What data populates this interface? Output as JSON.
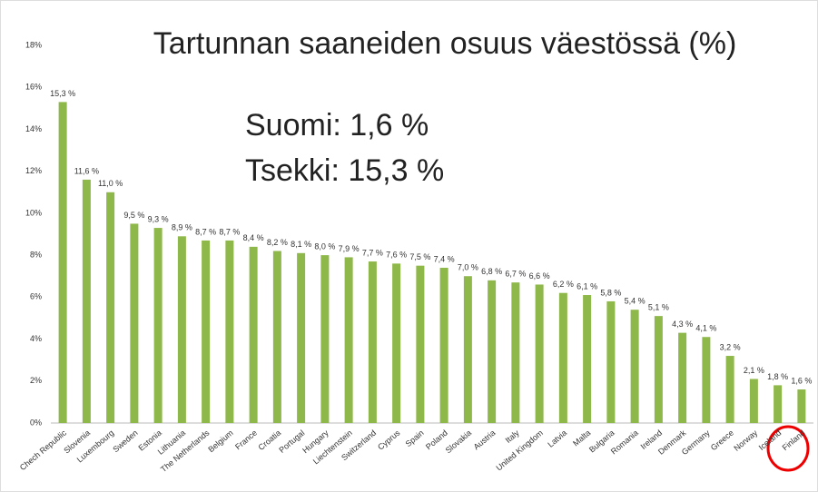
{
  "chart_data": {
    "type": "bar",
    "title": "Tartunnan saaneiden osuus väestössä (%)",
    "annotations": [
      "Suomi: 1,6 %",
      "Tsekki: 15,3 %"
    ],
    "categories": [
      "Chech Republic",
      "Slovenia",
      "Luxembourg",
      "Sweden",
      "Estonia",
      "Lithuania",
      "The Netherlands",
      "Belgium",
      "France",
      "Croatia",
      "Portugal",
      "Hungary",
      "Liechtenstein",
      "Switzerland",
      "Cyprus",
      "Spain",
      "Poland",
      "Slovakia",
      "Austria",
      "Italy",
      "United Kingdom",
      "Latvia",
      "Malta",
      "Bulgaria",
      "Romania",
      "Ireland",
      "Denmark",
      "Germany",
      "Greece",
      "Norway",
      "Iceland",
      "Finland"
    ],
    "values": [
      15.3,
      11.6,
      11.0,
      9.5,
      9.3,
      8.9,
      8.7,
      8.7,
      8.4,
      8.2,
      8.1,
      8.0,
      7.9,
      7.7,
      7.6,
      7.5,
      7.4,
      7.0,
      6.8,
      6.7,
      6.6,
      6.2,
      6.1,
      5.8,
      5.4,
      5.1,
      4.3,
      4.1,
      3.2,
      2.1,
      1.8,
      1.6
    ],
    "value_labels": [
      "15,3 %",
      "11,6 %",
      "11,0 %",
      "9,5 %",
      "9,3 %",
      "8,9 %",
      "8,7 %",
      "8,7 %",
      "8,4 %",
      "8,2 %",
      "8,1 %",
      "8,0 %",
      "7,9 %",
      "7,7 %",
      "7,6 %",
      "7,5 %",
      "7,4 %",
      "7,0 %",
      "6,8 %",
      "6,7 %",
      "6,6 %",
      "6,2 %",
      "6,1 %",
      "5,8 %",
      "5,4 %",
      "5,1 %",
      "4,3 %",
      "4,1 %",
      "3,2 %",
      "2,1 %",
      "1,8 %",
      "1,6 %"
    ],
    "color": "#8fb84a",
    "ylim": [
      0,
      18
    ],
    "yticks": [
      {
        "value": 0,
        "label": "0%"
      },
      {
        "value": 2,
        "label": "2%"
      },
      {
        "value": 4,
        "label": "4%"
      },
      {
        "value": 6,
        "label": "6%"
      },
      {
        "value": 8,
        "label": "8%"
      },
      {
        "value": 10,
        "label": "10%"
      },
      {
        "value": 12,
        "label": "12%"
      },
      {
        "value": 14,
        "label": "14%"
      },
      {
        "value": 16,
        "label": "16%"
      },
      {
        "value": 18,
        "label": "18%"
      }
    ],
    "grid": false
  }
}
